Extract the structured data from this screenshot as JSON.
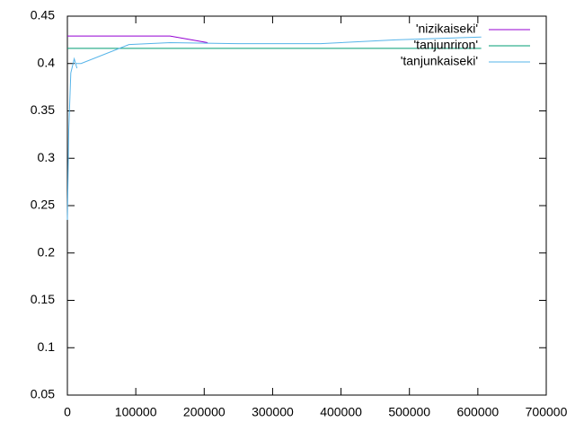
{
  "chart_data": {
    "type": "line",
    "series": [
      {
        "name": "'nizikaiseki'",
        "color": "#9400d3",
        "x": [
          0,
          150000,
          205000
        ],
        "values": [
          0.429,
          0.429,
          0.422
        ]
      },
      {
        "name": "'tanjunriron'",
        "color": "#009e73",
        "x": [
          0,
          605000
        ],
        "values": [
          0.416,
          0.416
        ]
      },
      {
        "name": "'tanjunkaiseki'",
        "color": "#56b4e9",
        "x": [
          0,
          2000,
          5000,
          10000,
          14000,
          12000,
          20000,
          90000,
          150000,
          250000,
          370000,
          480000,
          605000
        ],
        "values": [
          0.235,
          0.33,
          0.39,
          0.405,
          0.395,
          0.4,
          0.4,
          0.42,
          0.422,
          0.421,
          0.421,
          0.425,
          0.428
        ]
      }
    ],
    "xlim": [
      0,
      700000
    ],
    "xticks": [
      0,
      100000,
      200000,
      300000,
      400000,
      500000,
      600000,
      700000
    ],
    "ylim": [
      0.05,
      0.45
    ],
    "yticks": [
      0.05,
      0.1,
      0.15,
      0.2,
      0.25,
      0.3,
      0.35,
      0.4,
      0.45
    ],
    "legend": "top-right"
  }
}
